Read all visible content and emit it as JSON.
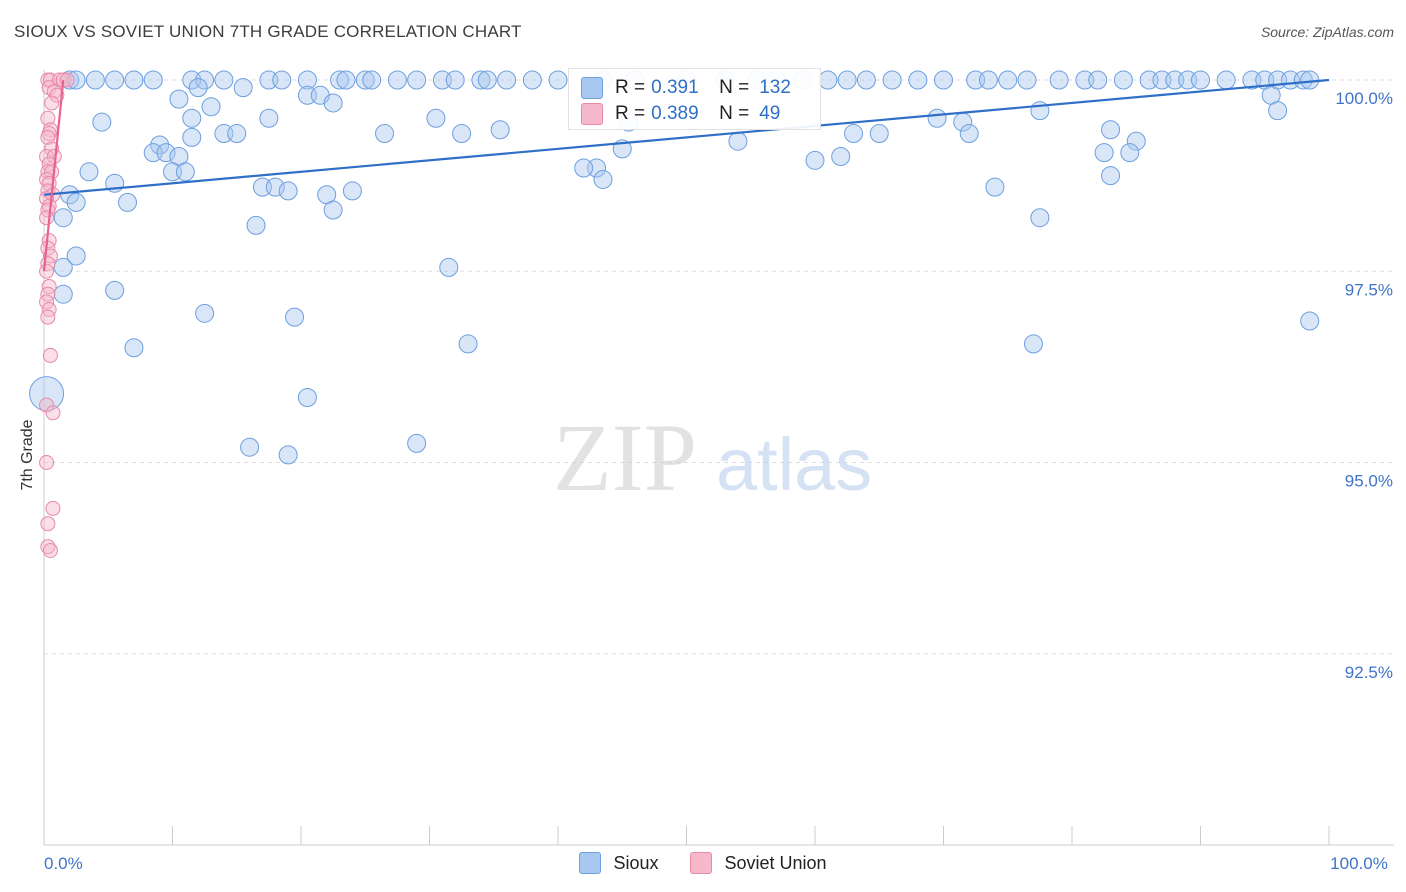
{
  "title": "SIOUX VS SOVIET UNION 7TH GRADE CORRELATION CHART",
  "source": "Source: ZipAtlas.com",
  "watermark": {
    "zip": "ZIP",
    "atlas": "atlas"
  },
  "colors": {
    "sioux_fill": "#a9c8ef",
    "sioux_stroke": "#6d9fde",
    "sioux_line": "#2f6fc7",
    "soviet_fill": "#f5b9cb",
    "soviet_stroke": "#e889a8",
    "soviet_line": "#e8638f",
    "tick_label": "#3f74c8",
    "grid": "#dedede"
  },
  "stats": {
    "sioux": {
      "r_label": "R =",
      "r_value": "0.391",
      "n_label": "N =",
      "n_value": "132"
    },
    "soviet": {
      "r_label": "R =",
      "r_value": "0.389",
      "n_label": "N =",
      "n_value": "49"
    }
  },
  "legend": {
    "sioux": "Sioux",
    "soviet": "Soviet Union"
  },
  "chart_data": {
    "type": "scatter",
    "title": "SIOUX VS SOVIET UNION 7TH GRADE CORRELATION CHART",
    "xlabel": "",
    "ylabel": "7th Grade",
    "xlim": [
      0,
      100
    ],
    "ylim": [
      90.0,
      100.4
    ],
    "x_tick_labels": [
      {
        "value": 0,
        "label": "0.0%"
      },
      {
        "value": 100,
        "label": "100.0%"
      }
    ],
    "y_tick_labels": [
      {
        "value": 100.0,
        "label": "100.0%"
      },
      {
        "value": 97.5,
        "label": "97.5%"
      },
      {
        "value": 95.0,
        "label": "95.0%"
      },
      {
        "value": 92.5,
        "label": "92.5%"
      }
    ],
    "grid": true,
    "series": [
      {
        "name": "Sioux",
        "trend": {
          "x": [
            0,
            100
          ],
          "y": [
            98.5,
            100.0
          ]
        },
        "points": [
          [
            2,
            100
          ],
          [
            2.5,
            100
          ],
          [
            4,
            100
          ],
          [
            5.5,
            100
          ],
          [
            7,
            100
          ],
          [
            8.5,
            100
          ],
          [
            11.5,
            100
          ],
          [
            12.5,
            100
          ],
          [
            14,
            100
          ],
          [
            17.5,
            100
          ],
          [
            18.5,
            100
          ],
          [
            20.5,
            100
          ],
          [
            23,
            100
          ],
          [
            23.5,
            100
          ],
          [
            25,
            100
          ],
          [
            25.5,
            100
          ],
          [
            27.5,
            100
          ],
          [
            29,
            100
          ],
          [
            31,
            100
          ],
          [
            32,
            100
          ],
          [
            34,
            100
          ],
          [
            34.5,
            100
          ],
          [
            36,
            100
          ],
          [
            38,
            100
          ],
          [
            40,
            100
          ],
          [
            43.5,
            100
          ],
          [
            46,
            100
          ],
          [
            50,
            100
          ],
          [
            53,
            100
          ],
          [
            55.5,
            100
          ],
          [
            57,
            100
          ],
          [
            59,
            100
          ],
          [
            61,
            100
          ],
          [
            62.5,
            100
          ],
          [
            64,
            100
          ],
          [
            66,
            100
          ],
          [
            68,
            100
          ],
          [
            70,
            100
          ],
          [
            72.5,
            100
          ],
          [
            73.5,
            100
          ],
          [
            75,
            100
          ],
          [
            76.5,
            100
          ],
          [
            79,
            100
          ],
          [
            81,
            100
          ],
          [
            82,
            100
          ],
          [
            84,
            100
          ],
          [
            86,
            100
          ],
          [
            87,
            100
          ],
          [
            88,
            100
          ],
          [
            89,
            100
          ],
          [
            90,
            100
          ],
          [
            92,
            100
          ],
          [
            94,
            100
          ],
          [
            95,
            100
          ],
          [
            96,
            100
          ],
          [
            97,
            100
          ],
          [
            98,
            100
          ],
          [
            98.5,
            100
          ],
          [
            12,
            99.9
          ],
          [
            15.5,
            99.9
          ],
          [
            20.5,
            99.8
          ],
          [
            21.5,
            99.8
          ],
          [
            10.5,
            99.75
          ],
          [
            22.5,
            99.7
          ],
          [
            13,
            99.65
          ],
          [
            11.5,
            99.5
          ],
          [
            17.5,
            99.5
          ],
          [
            30.5,
            99.5
          ],
          [
            45.5,
            99.45
          ],
          [
            69.5,
            99.5
          ],
          [
            71.5,
            99.45
          ],
          [
            77.5,
            99.6
          ],
          [
            95.5,
            99.8
          ],
          [
            96,
            99.6
          ],
          [
            4.5,
            99.45
          ],
          [
            26.5,
            99.3
          ],
          [
            32.5,
            99.3
          ],
          [
            35.5,
            99.35
          ],
          [
            63,
            99.3
          ],
          [
            65,
            99.3
          ],
          [
            72,
            99.3
          ],
          [
            83,
            99.35
          ],
          [
            85,
            99.2
          ],
          [
            11.5,
            99.25
          ],
          [
            9,
            99.15
          ],
          [
            14,
            99.3
          ],
          [
            15,
            99.3
          ],
          [
            8.5,
            99.05
          ],
          [
            9.5,
            99.05
          ],
          [
            10.5,
            99.0
          ],
          [
            45,
            99.1
          ],
          [
            54,
            99.2
          ],
          [
            60,
            98.95
          ],
          [
            62,
            99.0
          ],
          [
            82.5,
            99.05
          ],
          [
            84.5,
            99.05
          ],
          [
            43,
            98.85
          ],
          [
            42,
            98.85
          ],
          [
            10,
            98.8
          ],
          [
            11,
            98.8
          ],
          [
            3.5,
            98.8
          ],
          [
            43.5,
            98.7
          ],
          [
            83,
            98.75
          ],
          [
            5.5,
            98.65
          ],
          [
            17,
            98.6
          ],
          [
            18,
            98.6
          ],
          [
            19,
            98.55
          ],
          [
            2,
            98.5
          ],
          [
            2.5,
            98.4
          ],
          [
            6.5,
            98.4
          ],
          [
            22,
            98.5
          ],
          [
            24,
            98.55
          ],
          [
            74,
            98.6
          ],
          [
            22.5,
            98.3
          ],
          [
            1.5,
            98.2
          ],
          [
            16.5,
            98.1
          ],
          [
            77.5,
            98.2
          ],
          [
            2.5,
            97.7
          ],
          [
            1.5,
            97.55
          ],
          [
            31.5,
            97.55
          ],
          [
            1.5,
            97.2
          ],
          [
            5.5,
            97.25
          ],
          [
            12.5,
            96.95
          ],
          [
            19.5,
            96.9
          ],
          [
            7,
            96.5
          ],
          [
            33,
            96.55
          ],
          [
            77,
            96.55
          ],
          [
            98.5,
            96.85
          ],
          [
            0.2,
            95.9
          ],
          [
            20.5,
            95.85
          ],
          [
            16,
            95.2
          ],
          [
            19,
            95.1
          ],
          [
            29,
            95.25
          ]
        ]
      },
      {
        "name": "Soviet Union",
        "trend": {
          "x": [
            0,
            1.5
          ],
          "y": [
            97.5,
            100.0
          ]
        },
        "points": [
          [
            0.3,
            100
          ],
          [
            0.5,
            100
          ],
          [
            1.2,
            100
          ],
          [
            1.5,
            100
          ],
          [
            1.8,
            100
          ],
          [
            0.4,
            99.9
          ],
          [
            0.8,
            99.85
          ],
          [
            1.0,
            99.8
          ],
          [
            0.6,
            99.7
          ],
          [
            0.3,
            99.5
          ],
          [
            0.5,
            99.35
          ],
          [
            0.4,
            99.3
          ],
          [
            0.3,
            99.25
          ],
          [
            0.6,
            99.1
          ],
          [
            0.2,
            99.0
          ],
          [
            0.8,
            99.0
          ],
          [
            0.4,
            98.9
          ],
          [
            0.3,
            98.8
          ],
          [
            0.6,
            98.8
          ],
          [
            0.2,
            98.7
          ],
          [
            0.4,
            98.65
          ],
          [
            0.3,
            98.55
          ],
          [
            0.7,
            98.5
          ],
          [
            0.2,
            98.45
          ],
          [
            0.4,
            98.35
          ],
          [
            0.3,
            98.3
          ],
          [
            0.2,
            98.2
          ],
          [
            0.4,
            97.9
          ],
          [
            0.3,
            97.8
          ],
          [
            0.5,
            97.7
          ],
          [
            0.3,
            97.6
          ],
          [
            0.2,
            97.5
          ],
          [
            0.4,
            97.3
          ],
          [
            0.3,
            97.2
          ],
          [
            0.2,
            97.1
          ],
          [
            0.4,
            97.0
          ],
          [
            0.3,
            96.9
          ],
          [
            0.5,
            96.4
          ],
          [
            0.2,
            95.75
          ],
          [
            0.7,
            95.65
          ],
          [
            0.2,
            95.0
          ],
          [
            0.7,
            94.4
          ],
          [
            0.3,
            94.2
          ],
          [
            0.3,
            93.9
          ],
          [
            0.5,
            93.85
          ]
        ]
      }
    ]
  }
}
